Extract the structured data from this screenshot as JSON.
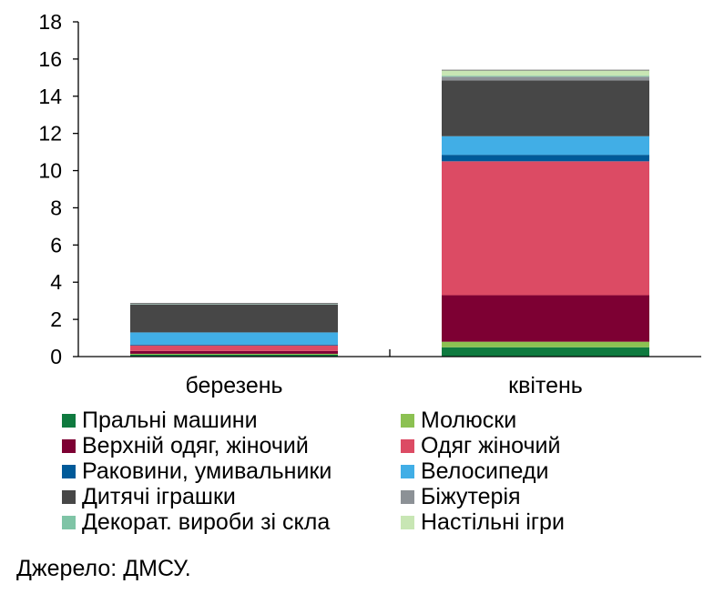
{
  "chart_data": {
    "type": "bar",
    "stacked": true,
    "categories": [
      "березень",
      "квітень"
    ],
    "ylim": [
      0,
      18
    ],
    "yticks": [
      0,
      2,
      4,
      6,
      8,
      10,
      12,
      14,
      16,
      18
    ],
    "grid": false,
    "legend_position": "bottom",
    "series": [
      {
        "name": "Пральні машини",
        "color": "#0f7a3f",
        "values": [
          0.1,
          0.5
        ]
      },
      {
        "name": "Молюски",
        "color": "#8cc152",
        "values": [
          0.05,
          0.3
        ]
      },
      {
        "name": "Верхній одяг, жіночий",
        "color": "#7d0033",
        "values": [
          0.15,
          2.5
        ]
      },
      {
        "name": "Одяг жіночий",
        "color": "#dc4b64",
        "values": [
          0.3,
          7.2
        ]
      },
      {
        "name": "Раковини, умивальники",
        "color": "#005a99",
        "values": [
          0.05,
          0.35
        ]
      },
      {
        "name": "Велосипеди",
        "color": "#41aee6",
        "values": [
          0.65,
          1.0
        ]
      },
      {
        "name": "Дитячі іграшки",
        "color": "#474747",
        "values": [
          1.5,
          3.0
        ]
      },
      {
        "name": "Біжутерія",
        "color": "#8c9196",
        "values": [
          0.02,
          0.2
        ]
      },
      {
        "name": "Декорат. вироби зі скла",
        "color": "#7fc4a6",
        "values": [
          0.02,
          0.05
        ]
      },
      {
        "name": "Настільні ігри",
        "color": "#c8e6b4",
        "values": [
          0.02,
          0.3
        ]
      }
    ]
  },
  "source": "Джерело: ДМСУ."
}
